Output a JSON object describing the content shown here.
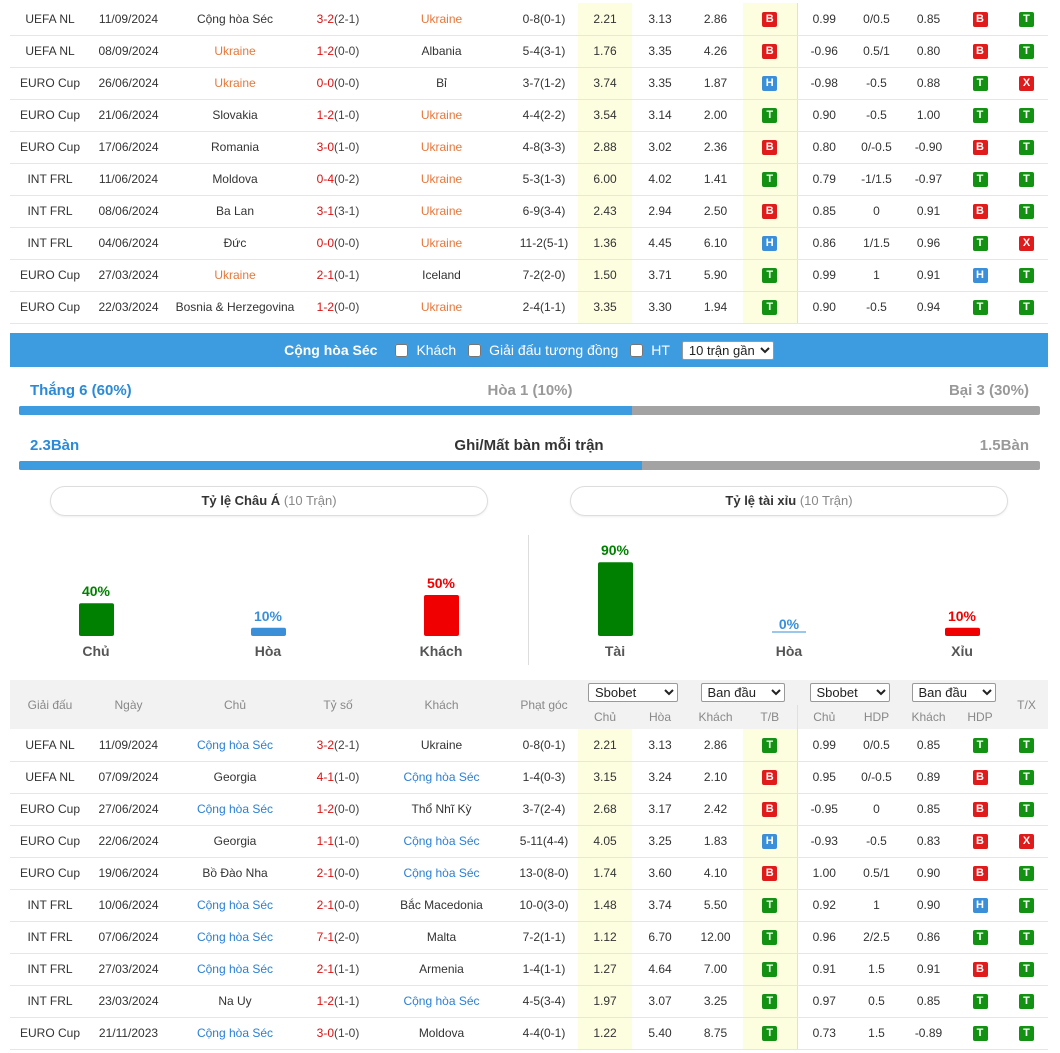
{
  "top_table": {
    "highlight_color": "#e8773a",
    "rows": [
      {
        "focus": "away",
        "cells": [
          "UEFA NL",
          "11/09/2024",
          "Cộng hòa Séc",
          "3-2",
          "(2-1)",
          "Ukraine",
          "0-8(0-1)",
          "2.21",
          "3.13",
          "2.86",
          "B",
          "0.99",
          "0/0.5",
          "0.85",
          "B",
          "T"
        ]
      },
      {
        "focus": "home",
        "cells": [
          "UEFA NL",
          "08/09/2024",
          "Ukraine",
          "1-2",
          "(0-0)",
          "Albania",
          "5-4(3-1)",
          "1.76",
          "3.35",
          "4.26",
          "B",
          "-0.96",
          "0.5/1",
          "0.80",
          "B",
          "T"
        ]
      },
      {
        "focus": "home",
        "cells": [
          "EURO Cup",
          "26/06/2024",
          "Ukraine",
          "0-0",
          "(0-0)",
          "Bỉ",
          "3-7(1-2)",
          "3.74",
          "3.35",
          "1.87",
          "H",
          "-0.98",
          "-0.5",
          "0.88",
          "T",
          "X"
        ]
      },
      {
        "focus": "away",
        "cells": [
          "EURO Cup",
          "21/06/2024",
          "Slovakia",
          "1-2",
          "(1-0)",
          "Ukraine",
          "4-4(2-2)",
          "3.54",
          "3.14",
          "2.00",
          "T",
          "0.90",
          "-0.5",
          "1.00",
          "T",
          "T"
        ]
      },
      {
        "focus": "away",
        "cells": [
          "EURO Cup",
          "17/06/2024",
          "Romania",
          "3-0",
          "(1-0)",
          "Ukraine",
          "4-8(3-3)",
          "2.88",
          "3.02",
          "2.36",
          "B",
          "0.80",
          "0/-0.5",
          "-0.90",
          "B",
          "T"
        ]
      },
      {
        "focus": "away",
        "cells": [
          "INT FRL",
          "11/06/2024",
          "Moldova",
          "0-4",
          "(0-2)",
          "Ukraine",
          "5-3(1-3)",
          "6.00",
          "4.02",
          "1.41",
          "T",
          "0.79",
          "-1/1.5",
          "-0.97",
          "T",
          "T"
        ]
      },
      {
        "focus": "away",
        "cells": [
          "INT FRL",
          "08/06/2024",
          "Ba Lan",
          "3-1",
          "(3-1)",
          "Ukraine",
          "6-9(3-4)",
          "2.43",
          "2.94",
          "2.50",
          "B",
          "0.85",
          "0",
          "0.91",
          "B",
          "T"
        ]
      },
      {
        "focus": "away",
        "cells": [
          "INT FRL",
          "04/06/2024",
          "Đức",
          "0-0",
          "(0-0)",
          "Ukraine",
          "11-2(5-1)",
          "1.36",
          "4.45",
          "6.10",
          "H",
          "0.86",
          "1/1.5",
          "0.96",
          "T",
          "X"
        ]
      },
      {
        "focus": "home",
        "cells": [
          "EURO Cup",
          "27/03/2024",
          "Ukraine",
          "2-1",
          "(0-1)",
          "Iceland",
          "7-2(2-0)",
          "1.50",
          "3.71",
          "5.90",
          "T",
          "0.99",
          "1",
          "0.91",
          "H",
          "T"
        ]
      },
      {
        "focus": "away",
        "cells": [
          "EURO Cup",
          "22/03/2024",
          "Bosnia & Herzegovina",
          "1-2",
          "(0-0)",
          "Ukraine",
          "2-4(1-1)",
          "3.35",
          "3.30",
          "1.94",
          "T",
          "0.90",
          "-0.5",
          "0.94",
          "T",
          "T"
        ]
      }
    ]
  },
  "filter": {
    "team": "Cộng hòa Séc",
    "options": [
      "Khách",
      "Giải đấu tương đồng",
      "HT"
    ],
    "select": "10 trận gần"
  },
  "summary": {
    "win": "Thắng 6 (60%)",
    "draw": "Hòa 1 (10%)",
    "loss": "Bại 3 (30%)",
    "goals_for": "2.3Bàn",
    "goals_title": "Ghi/Mất bàn mỗi trận",
    "goals_against": "1.5Bàn"
  },
  "charts": [
    {
      "type": "bar",
      "title": "Tỷ lệ Châu Á",
      "subtitle": "(10 Trận)",
      "categories": [
        "Chủ",
        "Hòa",
        "Khách"
      ],
      "values": [
        40,
        10,
        50
      ],
      "value_labels": [
        "40%",
        "10%",
        "50%"
      ],
      "colors": [
        "#008000",
        "#3a8fd8",
        "#f00000"
      ]
    },
    {
      "type": "bar",
      "title": "Tỷ lệ tài xỉu",
      "subtitle": "(10 Trận)",
      "categories": [
        "Tài",
        "Hòa",
        "Xỉu"
      ],
      "values": [
        90,
        0,
        10
      ],
      "value_labels": [
        "90%",
        "0%",
        "10%"
      ],
      "colors": [
        "#008000",
        "#3a8fd8",
        "#f00000"
      ]
    }
  ],
  "bottom_table": {
    "highlight_color": "#2a7fd4",
    "header": {
      "league": "Giải đấu",
      "date": "Ngày",
      "home": "Chủ",
      "score": "Tỷ số",
      "away": "Khách",
      "corner": "Phạt góc",
      "bookmaker1": "Sbobet",
      "type1": "Ban đầu",
      "bookmaker2": "Sbobet",
      "type2": "Ban đầu",
      "ou": "T/X",
      "sub": [
        "Chủ",
        "Hòa",
        "Khách",
        "T/B",
        "Chủ",
        "HDP",
        "Khách",
        "HDP"
      ]
    },
    "rows": [
      {
        "focus": "home",
        "cells": [
          "UEFA NL",
          "11/09/2024",
          "Cộng hòa Séc",
          "3-2",
          "(2-1)",
          "Ukraine",
          "0-8(0-1)",
          "2.21",
          "3.13",
          "2.86",
          "T",
          "0.99",
          "0/0.5",
          "0.85",
          "T",
          "T"
        ]
      },
      {
        "focus": "away",
        "cells": [
          "UEFA NL",
          "07/09/2024",
          "Georgia",
          "4-1",
          "(1-0)",
          "Cộng hòa Séc",
          "1-4(0-3)",
          "3.15",
          "3.24",
          "2.10",
          "B",
          "0.95",
          "0/-0.5",
          "0.89",
          "B",
          "T"
        ]
      },
      {
        "focus": "home",
        "cells": [
          "EURO Cup",
          "27/06/2024",
          "Cộng hòa Séc",
          "1-2",
          "(0-0)",
          "Thổ Nhĩ Kỳ",
          "3-7(2-4)",
          "2.68",
          "3.17",
          "2.42",
          "B",
          "-0.95",
          "0",
          "0.85",
          "B",
          "T"
        ]
      },
      {
        "focus": "away",
        "cells": [
          "EURO Cup",
          "22/06/2024",
          "Georgia",
          "1-1",
          "(1-0)",
          "Cộng hòa Séc",
          "5-11(4-4)",
          "4.05",
          "3.25",
          "1.83",
          "H",
          "-0.93",
          "-0.5",
          "0.83",
          "B",
          "X"
        ]
      },
      {
        "focus": "away",
        "cells": [
          "EURO Cup",
          "19/06/2024",
          "Bồ Đào Nha",
          "2-1",
          "(0-0)",
          "Cộng hòa Séc",
          "13-0(8-0)",
          "1.74",
          "3.60",
          "4.10",
          "B",
          "1.00",
          "0.5/1",
          "0.90",
          "B",
          "T"
        ]
      },
      {
        "focus": "home",
        "cells": [
          "INT FRL",
          "10/06/2024",
          "Cộng hòa Séc",
          "2-1",
          "(0-0)",
          "Bắc Macedonia",
          "10-0(3-0)",
          "1.48",
          "3.74",
          "5.50",
          "T",
          "0.92",
          "1",
          "0.90",
          "H",
          "T"
        ]
      },
      {
        "focus": "home",
        "cells": [
          "INT FRL",
          "07/06/2024",
          "Cộng hòa Séc",
          "7-1",
          "(2-0)",
          "Malta",
          "7-2(1-1)",
          "1.12",
          "6.70",
          "12.00",
          "T",
          "0.96",
          "2/2.5",
          "0.86",
          "T",
          "T"
        ]
      },
      {
        "focus": "home",
        "cells": [
          "INT FRL",
          "27/03/2024",
          "Cộng hòa Séc",
          "2-1",
          "(1-1)",
          "Armenia",
          "1-4(1-1)",
          "1.27",
          "4.64",
          "7.00",
          "T",
          "0.91",
          "1.5",
          "0.91",
          "B",
          "T"
        ]
      },
      {
        "focus": "away",
        "cells": [
          "INT FRL",
          "23/03/2024",
          "Na Uy",
          "1-2",
          "(1-1)",
          "Cộng hòa Séc",
          "4-5(3-4)",
          "1.97",
          "3.07",
          "3.25",
          "T",
          "0.97",
          "0.5",
          "0.85",
          "T",
          "T"
        ]
      },
      {
        "focus": "home",
        "cells": [
          "EURO Cup",
          "21/11/2023",
          "Cộng hòa Séc",
          "3-0",
          "(1-0)",
          "Moldova",
          "4-4(0-1)",
          "1.22",
          "5.40",
          "8.75",
          "T",
          "0.73",
          "1.5",
          "-0.89",
          "T",
          "T"
        ]
      }
    ]
  }
}
